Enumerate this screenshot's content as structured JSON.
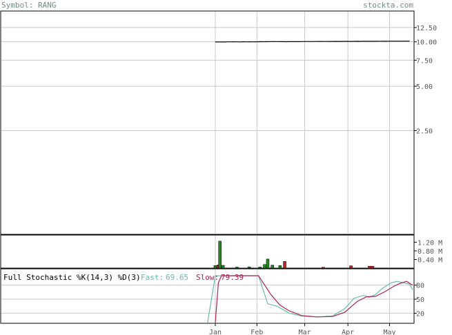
{
  "header": {
    "symbol_label": "Symbol: RANG",
    "site": "stockta.com"
  },
  "stochastic": {
    "title": "Full Stochastic %K(14,3) %D(3)",
    "fast_label": "Fast:",
    "fast_value": "69.65",
    "slow_label": "Slow:",
    "slow_value": "79.39"
  },
  "colors": {
    "fast": "#66bbaa",
    "slow": "#aa2255",
    "up_volume": "#228822",
    "down_volume": "#cc2222",
    "price": "#000000",
    "grid": "#c8c8c8",
    "header_text": "#6b8e7b"
  },
  "chart_data": [
    {
      "type": "line",
      "name": "price",
      "scale": "log",
      "yticks": [
        "12.50",
        "10.00",
        "7.50",
        "5.00",
        "2.50"
      ],
      "ytick_values": [
        12.5,
        10,
        7.5,
        5,
        2.5
      ],
      "ylim": [
        0.5,
        16
      ],
      "x": [
        0,
        2,
        4,
        6,
        8,
        10,
        12,
        14,
        16,
        18,
        20,
        22,
        24,
        26,
        28,
        30,
        32,
        34,
        36,
        38,
        40,
        42,
        44,
        46,
        48,
        50,
        52,
        54,
        56,
        58,
        60,
        62,
        64,
        66,
        68,
        70,
        72,
        74,
        76,
        78,
        80,
        82,
        84,
        86,
        88,
        90,
        92,
        94,
        96,
        98,
        100,
        102,
        104,
        106,
        108,
        110,
        112,
        114,
        116,
        118,
        120,
        122,
        124,
        126
      ],
      "values": [
        9.98,
        9.98,
        9.99,
        9.98,
        10.0,
        10.0,
        10.01,
        10.0,
        9.99,
        10.02,
        10.0,
        10.01,
        10.0,
        10.01,
        10.02,
        10.03,
        10.02,
        10.03,
        10.04,
        10.05,
        10.04,
        10.03,
        10.03,
        10.02,
        10.03,
        10.03,
        10.04,
        10.03,
        10.04,
        10.05,
        10.05,
        10.04,
        10.05,
        10.05,
        10.06,
        10.05,
        10.05,
        10.06,
        10.06,
        10.07,
        10.06,
        10.06,
        10.07,
        10.07,
        10.06,
        10.07,
        10.08,
        10.07,
        10.08,
        10.08,
        10.09,
        10.08,
        10.08,
        10.09,
        10.09,
        10.1,
        10.09,
        10.1,
        10.1,
        10.1,
        10.11,
        10.11,
        10.1,
        10.12
      ]
    },
    {
      "type": "bar",
      "name": "volume",
      "yticks": [
        "1.20 M",
        "0.80 M",
        "0.40 M"
      ],
      "ytick_values": [
        1.2,
        0.8,
        0.4
      ],
      "ylim": [
        0,
        1.5
      ],
      "bars": [
        {
          "x": 0,
          "v": 0.12,
          "c": "up"
        },
        {
          "x": 2,
          "v": 0.15,
          "c": "down"
        },
        {
          "x": 3,
          "v": 1.25,
          "c": "up"
        },
        {
          "x": 5,
          "v": 0.13,
          "c": "up"
        },
        {
          "x": 14,
          "v": 0.05,
          "c": "up"
        },
        {
          "x": 22,
          "v": 0.06,
          "c": "up"
        },
        {
          "x": 29,
          "v": 0.05,
          "c": "up"
        },
        {
          "x": 32,
          "v": 0.17,
          "c": "up"
        },
        {
          "x": 34,
          "v": 0.42,
          "c": "up"
        },
        {
          "x": 37,
          "v": 0.14,
          "c": "up"
        },
        {
          "x": 42,
          "v": 0.12,
          "c": "up"
        },
        {
          "x": 45,
          "v": 0.31,
          "c": "down"
        },
        {
          "x": 70,
          "v": 0.04,
          "c": "down"
        },
        {
          "x": 88,
          "v": 0.11,
          "c": "down"
        },
        {
          "x": 100,
          "v": 0.09,
          "c": "down"
        },
        {
          "x": 102,
          "v": 0.09,
          "c": "down"
        }
      ]
    },
    {
      "type": "line",
      "name": "stochastic",
      "yticks": [
        "80",
        "50",
        "20"
      ],
      "ytick_values": [
        80,
        50,
        20
      ],
      "ylim": [
        0,
        100
      ],
      "fast_x": [
        -5,
        0,
        4,
        20,
        28,
        34,
        40,
        48,
        56,
        66,
        76,
        84,
        90,
        96,
        100,
        104,
        108,
        114,
        118,
        122,
        126,
        128
      ],
      "fast": [
        0,
        100,
        100,
        100,
        100,
        40,
        35,
        20,
        14,
        12,
        14,
        30,
        52,
        58,
        54,
        60,
        72,
        85,
        88,
        85,
        82,
        70
      ],
      "slow_x": [
        0,
        2,
        4,
        20,
        28,
        36,
        42,
        48,
        56,
        66,
        76,
        84,
        92,
        98,
        104,
        110,
        116,
        120,
        124,
        128
      ],
      "slow": [
        0,
        85,
        100,
        100,
        100,
        60,
        37,
        25,
        15,
        12,
        13,
        22,
        45,
        55,
        56,
        66,
        78,
        84,
        88,
        80
      ],
      "xticks": [
        "Jan",
        "Feb",
        "Mar",
        "Apr",
        "May"
      ],
      "xtick_positions": [
        0,
        27,
        58,
        86,
        113
      ]
    }
  ]
}
